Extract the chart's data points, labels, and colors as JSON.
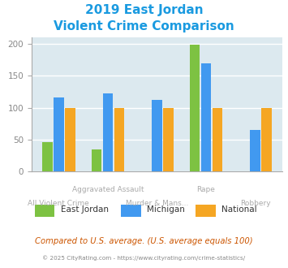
{
  "title_line1": "2019 East Jordan",
  "title_line2": "Violent Crime Comparison",
  "categories": [
    "All Violent Crime",
    "Aggravated Assault",
    "Murder & Mans...",
    "Rape",
    "Robbery"
  ],
  "series": {
    "East Jordan": [
      46,
      35,
      0,
      199,
      0
    ],
    "Michigan": [
      116,
      122,
      112,
      170,
      65
    ],
    "National": [
      100,
      100,
      100,
      100,
      100
    ]
  },
  "colors": {
    "East Jordan": "#7dc242",
    "Michigan": "#4199f0",
    "National": "#f5a623"
  },
  "ylim": [
    0,
    210
  ],
  "yticks": [
    0,
    50,
    100,
    150,
    200
  ],
  "background_color": "#dce9ef",
  "footer_text": "Compared to U.S. average. (U.S. average equals 100)",
  "credit_text": "© 2025 CityRating.com - https://www.cityrating.com/crime-statistics/",
  "title_color": "#1a9ae0",
  "footer_color": "#cc5500",
  "credit_color": "#888888",
  "xlabel_top_color": "#aaaaaa",
  "xlabel_bottom_color": "#aaaaaa",
  "grid_color": "#ffffff",
  "bar_width": 0.23
}
